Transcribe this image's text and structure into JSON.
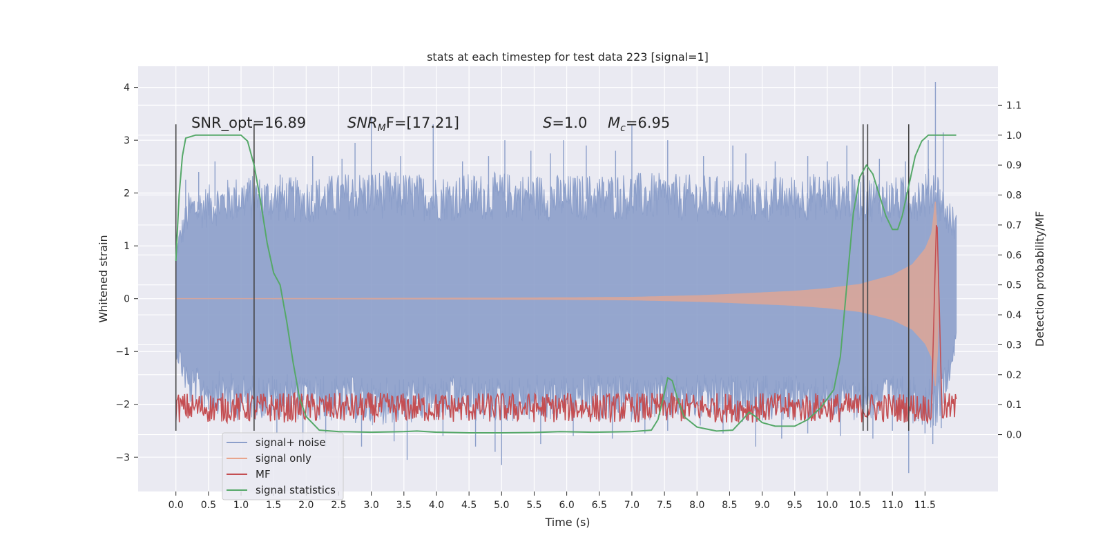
{
  "chart_data": {
    "type": "line",
    "title": "stats at each timestep for test data 223 [signal=1]",
    "xlabel": "Time (s)",
    "ylabel": "Whitened strain",
    "ylabel_right": "Detection probability/MF",
    "xlim": [
      -0.58,
      12.62
    ],
    "ylim": [
      -3.65,
      4.4
    ],
    "ylim_right": [
      -0.19,
      1.23
    ],
    "x_ticks": [
      "0.0",
      "0.5",
      "1.0",
      "1.5",
      "2.0",
      "2.5",
      "3.0",
      "3.5",
      "4.0",
      "4.5",
      "5.0",
      "5.5",
      "6.0",
      "6.5",
      "7.0",
      "7.5",
      "8.0",
      "8.5",
      "9.0",
      "9.5",
      "10.0",
      "10.5",
      "11.0",
      "11.5"
    ],
    "y_ticks": [
      "−3",
      "−2",
      "−1",
      "0",
      "1",
      "2",
      "3",
      "4"
    ],
    "y_ticks_right": [
      "0.0",
      "0.1",
      "0.2",
      "0.3",
      "0.4",
      "0.5",
      "0.6",
      "0.7",
      "0.8",
      "0.9",
      "1.0",
      "1.1"
    ],
    "grid": true,
    "legend_position": "lower-left",
    "legend": [
      {
        "label": "signal+ noise",
        "color": "#8c9fca"
      },
      {
        "label": "signal only",
        "color": "#e8a58d"
      },
      {
        "label": "MF",
        "color": "#c44e52"
      },
      {
        "label": "signal statistics",
        "color": "#55a868"
      }
    ],
    "annotations": {
      "snr_opt": "SNR_opt=16.89",
      "snr_mf_sym": "SNR",
      "snr_mf_sub": "M",
      "snr_mf_tail": "F=[17.21]",
      "s_sym": "S",
      "s_val": "=1.0",
      "mc_sym": "M",
      "mc_sub": "c",
      "mc_val": "=6.95"
    },
    "colors": {
      "background": "#eaeaf2",
      "grid": "#ffffff",
      "noise": "#8c9fca",
      "signal": "#e8a58d",
      "mf": "#c44e52",
      "stat": "#55a868",
      "vline": "#444444"
    },
    "series": [
      {
        "name": "signal+ noise",
        "envelope_upper": [
          [
            0.0,
            1.1
          ],
          [
            0.2,
            2.05
          ],
          [
            1.0,
            2.35
          ],
          [
            2.0,
            2.3
          ],
          [
            3.0,
            2.45
          ],
          [
            4.0,
            2.35
          ],
          [
            5.0,
            2.4
          ],
          [
            6.0,
            2.35
          ],
          [
            7.0,
            2.4
          ],
          [
            8.0,
            2.35
          ],
          [
            9.0,
            2.3
          ],
          [
            10.0,
            2.4
          ],
          [
            11.0,
            2.3
          ],
          [
            11.5,
            2.4
          ],
          [
            11.65,
            2.6
          ],
          [
            11.8,
            2.05
          ],
          [
            11.98,
            1.65
          ]
        ],
        "envelope_lower": [
          [
            0.0,
            -1.1
          ],
          [
            0.2,
            -2.05
          ],
          [
            1.0,
            -2.3
          ],
          [
            2.0,
            -2.3
          ],
          [
            3.0,
            -2.4
          ],
          [
            4.0,
            -2.35
          ],
          [
            5.0,
            -2.35
          ],
          [
            6.0,
            -2.3
          ],
          [
            7.0,
            -2.35
          ],
          [
            8.0,
            -2.3
          ],
          [
            9.0,
            -2.35
          ],
          [
            10.0,
            -2.3
          ],
          [
            11.0,
            -2.3
          ],
          [
            11.5,
            -2.4
          ],
          [
            11.65,
            -2.5
          ],
          [
            11.8,
            -2.0
          ],
          [
            11.98,
            -0.95
          ]
        ],
        "spikes": [
          [
            0.15,
            2.25
          ],
          [
            0.35,
            2.4
          ],
          [
            0.6,
            2.6
          ],
          [
            1.1,
            2.2
          ],
          [
            1.6,
            2.35
          ],
          [
            2.1,
            2.7
          ],
          [
            2.55,
            2.65
          ],
          [
            2.75,
            2.95
          ],
          [
            3.0,
            3.45
          ],
          [
            3.45,
            2.7
          ],
          [
            3.95,
            3.3
          ],
          [
            4.4,
            2.6
          ],
          [
            4.8,
            2.7
          ],
          [
            5.05,
            3.0
          ],
          [
            5.45,
            2.8
          ],
          [
            5.75,
            2.75
          ],
          [
            5.95,
            3.0
          ],
          [
            6.3,
            2.9
          ],
          [
            6.75,
            2.8
          ],
          [
            7.0,
            3.3
          ],
          [
            7.55,
            3.0
          ],
          [
            8.1,
            2.7
          ],
          [
            8.55,
            2.9
          ],
          [
            8.75,
            2.75
          ],
          [
            9.2,
            2.6
          ],
          [
            9.7,
            2.7
          ],
          [
            10.0,
            2.6
          ],
          [
            10.3,
            2.9
          ],
          [
            10.55,
            2.7
          ],
          [
            10.8,
            2.65
          ],
          [
            11.2,
            2.6
          ],
          [
            11.55,
            3.0
          ],
          [
            11.66,
            4.1
          ],
          [
            11.78,
            3.15
          ],
          [
            0.5,
            -2.1
          ],
          [
            0.95,
            -2.3
          ],
          [
            1.55,
            -2.55
          ],
          [
            1.95,
            -2.75
          ],
          [
            2.3,
            -2.8
          ],
          [
            2.85,
            -2.8
          ],
          [
            3.35,
            -2.7
          ],
          [
            3.55,
            -3.05
          ],
          [
            4.1,
            -2.6
          ],
          [
            4.6,
            -2.8
          ],
          [
            4.9,
            -2.9
          ],
          [
            5.0,
            -3.15
          ],
          [
            5.6,
            -2.75
          ],
          [
            6.1,
            -2.6
          ],
          [
            6.7,
            -2.65
          ],
          [
            7.2,
            -2.55
          ],
          [
            7.55,
            -2.5
          ],
          [
            8.05,
            -2.4
          ],
          [
            8.4,
            -2.55
          ],
          [
            8.9,
            -2.8
          ],
          [
            9.3,
            -2.65
          ],
          [
            9.7,
            -2.55
          ],
          [
            10.2,
            -2.6
          ],
          [
            10.7,
            -2.65
          ],
          [
            11.0,
            -2.5
          ],
          [
            11.25,
            -3.3
          ],
          [
            11.5,
            -2.55
          ],
          [
            11.62,
            -2.75
          ],
          [
            11.75,
            -2.45
          ]
        ]
      },
      {
        "name": "signal only",
        "envelope": [
          [
            0.0,
            0.01
          ],
          [
            1.0,
            0.01
          ],
          [
            2.0,
            0.012
          ],
          [
            3.0,
            0.014
          ],
          [
            4.0,
            0.017
          ],
          [
            5.0,
            0.02
          ],
          [
            6.0,
            0.025
          ],
          [
            7.0,
            0.035
          ],
          [
            8.0,
            0.065
          ],
          [
            8.5,
            0.09
          ],
          [
            9.0,
            0.12
          ],
          [
            9.5,
            0.15
          ],
          [
            10.0,
            0.2
          ],
          [
            10.5,
            0.28
          ],
          [
            11.0,
            0.45
          ],
          [
            11.3,
            0.65
          ],
          [
            11.5,
            0.95
          ],
          [
            11.6,
            1.25
          ],
          [
            11.66,
            1.95
          ],
          [
            11.7,
            1.1
          ],
          [
            11.72,
            0.0
          ],
          [
            11.98,
            0.0
          ]
        ]
      },
      {
        "name": "MF",
        "baseline": 0.09,
        "noise_amplitude": 0.05,
        "peak": [
          11.68,
          0.75
        ]
      },
      {
        "name": "signal statistics",
        "points": [
          [
            0.0,
            0.58
          ],
          [
            0.05,
            0.8
          ],
          [
            0.1,
            0.93
          ],
          [
            0.15,
            0.99
          ],
          [
            0.3,
            1.0
          ],
          [
            0.5,
            1.0
          ],
          [
            0.8,
            1.0
          ],
          [
            1.0,
            1.0
          ],
          [
            1.1,
            0.98
          ],
          [
            1.2,
            0.9
          ],
          [
            1.3,
            0.78
          ],
          [
            1.4,
            0.64
          ],
          [
            1.5,
            0.54
          ],
          [
            1.6,
            0.5
          ],
          [
            1.7,
            0.38
          ],
          [
            1.8,
            0.24
          ],
          [
            1.9,
            0.12
          ],
          [
            2.0,
            0.06
          ],
          [
            2.2,
            0.015
          ],
          [
            2.5,
            0.01
          ],
          [
            3.0,
            0.008
          ],
          [
            3.5,
            0.01
          ],
          [
            3.7,
            0.012
          ],
          [
            4.0,
            0.008
          ],
          [
            4.5,
            0.006
          ],
          [
            5.0,
            0.006
          ],
          [
            5.5,
            0.007
          ],
          [
            5.9,
            0.01
          ],
          [
            6.4,
            0.008
          ],
          [
            7.0,
            0.01
          ],
          [
            7.3,
            0.015
          ],
          [
            7.4,
            0.05
          ],
          [
            7.48,
            0.12
          ],
          [
            7.55,
            0.19
          ],
          [
            7.62,
            0.18
          ],
          [
            7.7,
            0.12
          ],
          [
            7.8,
            0.06
          ],
          [
            8.0,
            0.025
          ],
          [
            8.3,
            0.012
          ],
          [
            8.55,
            0.015
          ],
          [
            8.7,
            0.05
          ],
          [
            8.8,
            0.075
          ],
          [
            8.9,
            0.06
          ],
          [
            9.0,
            0.04
          ],
          [
            9.2,
            0.028
          ],
          [
            9.5,
            0.028
          ],
          [
            9.7,
            0.05
          ],
          [
            9.9,
            0.09
          ],
          [
            10.1,
            0.15
          ],
          [
            10.2,
            0.26
          ],
          [
            10.3,
            0.5
          ],
          [
            10.4,
            0.74
          ],
          [
            10.5,
            0.86
          ],
          [
            10.6,
            0.9
          ],
          [
            10.7,
            0.87
          ],
          [
            10.8,
            0.8
          ],
          [
            10.9,
            0.73
          ],
          [
            11.0,
            0.685
          ],
          [
            11.08,
            0.685
          ],
          [
            11.15,
            0.73
          ],
          [
            11.25,
            0.83
          ],
          [
            11.35,
            0.93
          ],
          [
            11.45,
            0.98
          ],
          [
            11.55,
            1.0
          ],
          [
            11.8,
            1.0
          ],
          [
            11.98,
            1.0
          ]
        ]
      }
    ],
    "vlines": [
      {
        "x": 0.0,
        "ymin": -2.5,
        "ymax": 3.3
      },
      {
        "x": 1.2,
        "ymin": -2.5,
        "ymax": 3.3
      },
      {
        "x": 10.55,
        "ymin": -2.5,
        "ymax": 3.3
      },
      {
        "x": 10.62,
        "ymin": -2.5,
        "ymax": 3.3
      },
      {
        "x": 11.25,
        "ymin": -2.5,
        "ymax": 3.3
      }
    ]
  }
}
